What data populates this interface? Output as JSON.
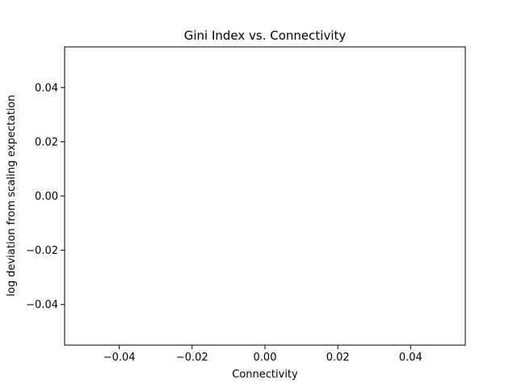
{
  "chart_data": {
    "type": "scatter",
    "title": "Gini Index vs. Connectivity",
    "xlabel": "Connectivity",
    "ylabel": "log deviation from scaling expectation",
    "xlim": [
      -0.055,
      0.055
    ],
    "ylim": [
      -0.055,
      0.055
    ],
    "xticks": [
      -0.04,
      -0.02,
      0.0,
      0.02,
      0.04
    ],
    "xtick_labels": [
      "−0.04",
      "−0.02",
      "0.00",
      "0.02",
      "0.04"
    ],
    "yticks": [
      -0.04,
      -0.02,
      0.0,
      0.02,
      0.04
    ],
    "ytick_labels": [
      "−0.04",
      "−0.02",
      "0.00",
      "0.02",
      "0.04"
    ],
    "grid": false,
    "series": [
      {
        "x": [],
        "y": []
      }
    ]
  }
}
